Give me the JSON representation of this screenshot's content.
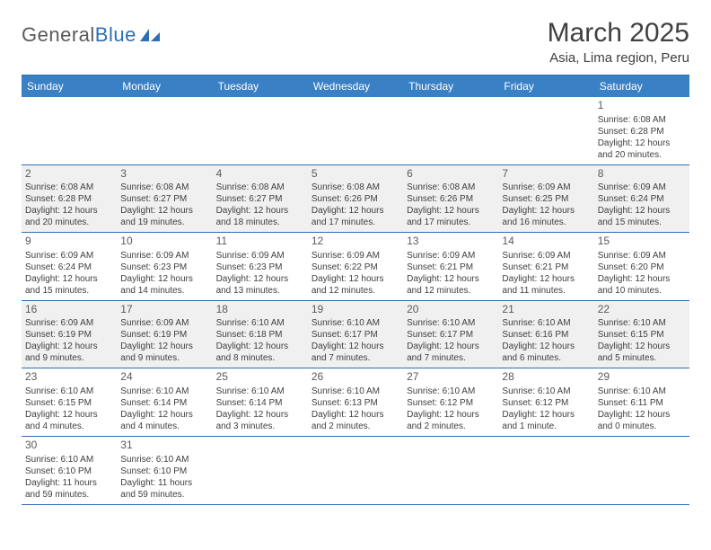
{
  "logo": {
    "part1": "General",
    "part2": "Blue"
  },
  "title": "March 2025",
  "subtitle": "Asia, Lima region, Peru",
  "colors": {
    "header_bg": "#3a80c4",
    "border": "#2d6fb5",
    "shaded_bg": "#f0f0f0",
    "text": "#404040"
  },
  "weekdays": [
    "Sunday",
    "Monday",
    "Tuesday",
    "Wednesday",
    "Thursday",
    "Friday",
    "Saturday"
  ],
  "weeks": [
    [
      {
        "n": "",
        "sr": "",
        "ss": "",
        "dl": ""
      },
      {
        "n": "",
        "sr": "",
        "ss": "",
        "dl": ""
      },
      {
        "n": "",
        "sr": "",
        "ss": "",
        "dl": ""
      },
      {
        "n": "",
        "sr": "",
        "ss": "",
        "dl": ""
      },
      {
        "n": "",
        "sr": "",
        "ss": "",
        "dl": ""
      },
      {
        "n": "",
        "sr": "",
        "ss": "",
        "dl": ""
      },
      {
        "n": "1",
        "sr": "Sunrise: 6:08 AM",
        "ss": "Sunset: 6:28 PM",
        "dl": "Daylight: 12 hours and 20 minutes."
      }
    ],
    [
      {
        "n": "2",
        "sr": "Sunrise: 6:08 AM",
        "ss": "Sunset: 6:28 PM",
        "dl": "Daylight: 12 hours and 20 minutes."
      },
      {
        "n": "3",
        "sr": "Sunrise: 6:08 AM",
        "ss": "Sunset: 6:27 PM",
        "dl": "Daylight: 12 hours and 19 minutes."
      },
      {
        "n": "4",
        "sr": "Sunrise: 6:08 AM",
        "ss": "Sunset: 6:27 PM",
        "dl": "Daylight: 12 hours and 18 minutes."
      },
      {
        "n": "5",
        "sr": "Sunrise: 6:08 AM",
        "ss": "Sunset: 6:26 PM",
        "dl": "Daylight: 12 hours and 17 minutes."
      },
      {
        "n": "6",
        "sr": "Sunrise: 6:08 AM",
        "ss": "Sunset: 6:26 PM",
        "dl": "Daylight: 12 hours and 17 minutes."
      },
      {
        "n": "7",
        "sr": "Sunrise: 6:09 AM",
        "ss": "Sunset: 6:25 PM",
        "dl": "Daylight: 12 hours and 16 minutes."
      },
      {
        "n": "8",
        "sr": "Sunrise: 6:09 AM",
        "ss": "Sunset: 6:24 PM",
        "dl": "Daylight: 12 hours and 15 minutes."
      }
    ],
    [
      {
        "n": "9",
        "sr": "Sunrise: 6:09 AM",
        "ss": "Sunset: 6:24 PM",
        "dl": "Daylight: 12 hours and 15 minutes."
      },
      {
        "n": "10",
        "sr": "Sunrise: 6:09 AM",
        "ss": "Sunset: 6:23 PM",
        "dl": "Daylight: 12 hours and 14 minutes."
      },
      {
        "n": "11",
        "sr": "Sunrise: 6:09 AM",
        "ss": "Sunset: 6:23 PM",
        "dl": "Daylight: 12 hours and 13 minutes."
      },
      {
        "n": "12",
        "sr": "Sunrise: 6:09 AM",
        "ss": "Sunset: 6:22 PM",
        "dl": "Daylight: 12 hours and 12 minutes."
      },
      {
        "n": "13",
        "sr": "Sunrise: 6:09 AM",
        "ss": "Sunset: 6:21 PM",
        "dl": "Daylight: 12 hours and 12 minutes."
      },
      {
        "n": "14",
        "sr": "Sunrise: 6:09 AM",
        "ss": "Sunset: 6:21 PM",
        "dl": "Daylight: 12 hours and 11 minutes."
      },
      {
        "n": "15",
        "sr": "Sunrise: 6:09 AM",
        "ss": "Sunset: 6:20 PM",
        "dl": "Daylight: 12 hours and 10 minutes."
      }
    ],
    [
      {
        "n": "16",
        "sr": "Sunrise: 6:09 AM",
        "ss": "Sunset: 6:19 PM",
        "dl": "Daylight: 12 hours and 9 minutes."
      },
      {
        "n": "17",
        "sr": "Sunrise: 6:09 AM",
        "ss": "Sunset: 6:19 PM",
        "dl": "Daylight: 12 hours and 9 minutes."
      },
      {
        "n": "18",
        "sr": "Sunrise: 6:10 AM",
        "ss": "Sunset: 6:18 PM",
        "dl": "Daylight: 12 hours and 8 minutes."
      },
      {
        "n": "19",
        "sr": "Sunrise: 6:10 AM",
        "ss": "Sunset: 6:17 PM",
        "dl": "Daylight: 12 hours and 7 minutes."
      },
      {
        "n": "20",
        "sr": "Sunrise: 6:10 AM",
        "ss": "Sunset: 6:17 PM",
        "dl": "Daylight: 12 hours and 7 minutes."
      },
      {
        "n": "21",
        "sr": "Sunrise: 6:10 AM",
        "ss": "Sunset: 6:16 PM",
        "dl": "Daylight: 12 hours and 6 minutes."
      },
      {
        "n": "22",
        "sr": "Sunrise: 6:10 AM",
        "ss": "Sunset: 6:15 PM",
        "dl": "Daylight: 12 hours and 5 minutes."
      }
    ],
    [
      {
        "n": "23",
        "sr": "Sunrise: 6:10 AM",
        "ss": "Sunset: 6:15 PM",
        "dl": "Daylight: 12 hours and 4 minutes."
      },
      {
        "n": "24",
        "sr": "Sunrise: 6:10 AM",
        "ss": "Sunset: 6:14 PM",
        "dl": "Daylight: 12 hours and 4 minutes."
      },
      {
        "n": "25",
        "sr": "Sunrise: 6:10 AM",
        "ss": "Sunset: 6:14 PM",
        "dl": "Daylight: 12 hours and 3 minutes."
      },
      {
        "n": "26",
        "sr": "Sunrise: 6:10 AM",
        "ss": "Sunset: 6:13 PM",
        "dl": "Daylight: 12 hours and 2 minutes."
      },
      {
        "n": "27",
        "sr": "Sunrise: 6:10 AM",
        "ss": "Sunset: 6:12 PM",
        "dl": "Daylight: 12 hours and 2 minutes."
      },
      {
        "n": "28",
        "sr": "Sunrise: 6:10 AM",
        "ss": "Sunset: 6:12 PM",
        "dl": "Daylight: 12 hours and 1 minute."
      },
      {
        "n": "29",
        "sr": "Sunrise: 6:10 AM",
        "ss": "Sunset: 6:11 PM",
        "dl": "Daylight: 12 hours and 0 minutes."
      }
    ],
    [
      {
        "n": "30",
        "sr": "Sunrise: 6:10 AM",
        "ss": "Sunset: 6:10 PM",
        "dl": "Daylight: 11 hours and 59 minutes."
      },
      {
        "n": "31",
        "sr": "Sunrise: 6:10 AM",
        "ss": "Sunset: 6:10 PM",
        "dl": "Daylight: 11 hours and 59 minutes."
      },
      {
        "n": "",
        "sr": "",
        "ss": "",
        "dl": ""
      },
      {
        "n": "",
        "sr": "",
        "ss": "",
        "dl": ""
      },
      {
        "n": "",
        "sr": "",
        "ss": "",
        "dl": ""
      },
      {
        "n": "",
        "sr": "",
        "ss": "",
        "dl": ""
      },
      {
        "n": "",
        "sr": "",
        "ss": "",
        "dl": ""
      }
    ]
  ],
  "shaded_rows": [
    1,
    3
  ]
}
